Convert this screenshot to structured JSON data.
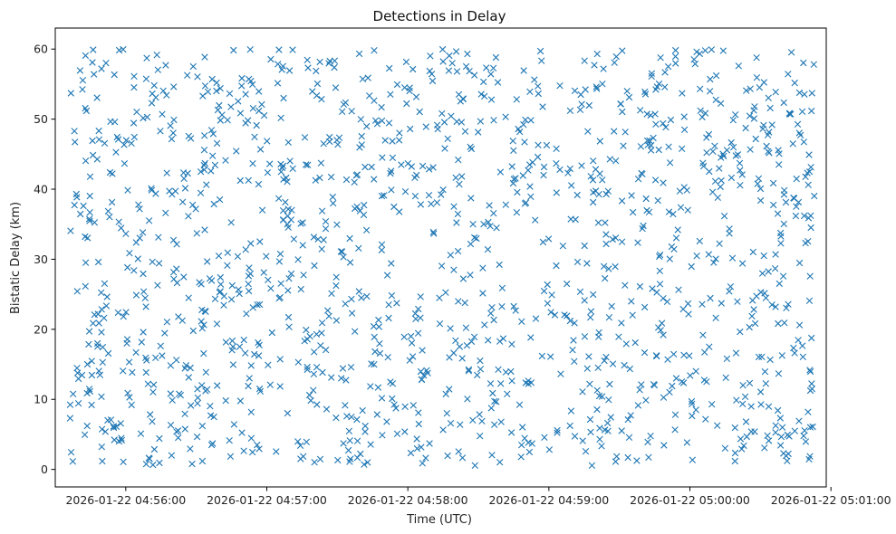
{
  "chart_data": {
    "type": "scatter",
    "title": "Detections in Delay",
    "xlabel": "Time (UTC)",
    "ylabel": "Bistatic Delay (km)",
    "xlim": [
      "2026-01-22 04:55:30",
      "2026-01-22 05:00:58"
    ],
    "ylim": [
      -2.5,
      63
    ],
    "x_ticks": [
      "2026-01-22 04:56:00",
      "2026-01-22 04:57:00",
      "2026-01-22 04:58:00",
      "2026-01-22 04:59:00",
      "2026-01-22 05:00:00",
      "2026-01-22 05:01:00"
    ],
    "y_ticks": [
      0,
      10,
      20,
      30,
      40,
      50,
      60
    ],
    "grid": false,
    "legend": "none",
    "marker": "x",
    "color": "#1f77b4",
    "series": [
      {
        "x_start": "2026-01-22 04:55:35",
        "x_end": "2026-01-22 05:00:53",
        "y_min": 0.5,
        "y_max": 60,
        "count": 1400,
        "distribution": "uniform-random"
      }
    ]
  }
}
